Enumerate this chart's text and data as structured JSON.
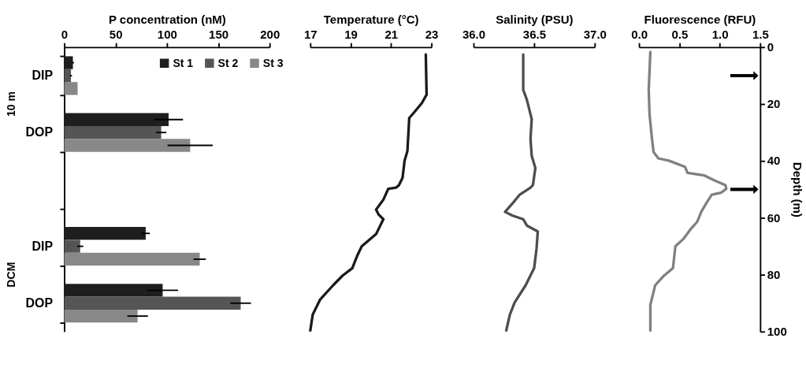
{
  "chart_data": [
    {
      "type": "bar",
      "orientation": "horizontal",
      "xlabel": "P concentration (nM)",
      "categories": [
        "DIP",
        "DOP",
        null,
        "DIP",
        "DOP"
      ],
      "xlim": [
        0,
        200
      ],
      "xticks": [
        0,
        50,
        100,
        150,
        200
      ],
      "legend": "top right",
      "annotations": [
        "10 m",
        "DCM"
      ],
      "series": [
        {
          "name": "St 1",
          "color": "#1e1e1e",
          "values": [
            8.4,
            101.6,
            null,
            79.3,
            95.8
          ],
          "errors": [
            1,
            14,
            null,
            4,
            15
          ]
        },
        {
          "name": "St 2",
          "color": "#555555",
          "values": [
            6.5,
            94.4,
            null,
            15.5,
            171.8
          ],
          "errors": [
            1,
            5,
            null,
            3,
            10
          ]
        },
        {
          "name": "St 3",
          "color": "#888888",
          "values": [
            13,
            122.6,
            null,
            131.9,
            71.4
          ],
          "errors": [
            null,
            22,
            null,
            6,
            10
          ]
        }
      ]
    },
    {
      "type": "line",
      "xlabel": "Temperature (°C)",
      "xlim": [
        17,
        23
      ],
      "xticks": [
        17,
        19,
        21,
        23
      ],
      "ylim": [
        100,
        0
      ],
      "yticks": [
        0,
        20,
        40,
        60,
        80,
        100
      ],
      "tick_labels": "x",
      "series": [
        {
          "color": "#1a1a1a",
          "x": [
            22.72,
            22.76,
            22.52,
            22.17,
            21.9,
            21.87,
            21.81,
            21.67,
            21.57,
            21.39,
            21.24,
            20.86,
            20.62,
            20.26,
            20.38,
            20.62,
            20.44,
            20.26,
            19.55,
            19.32,
            19.08,
            18.6,
            18.13,
            17.48,
            17.12,
            17.0
          ],
          "values": [
            2.6,
            16.7,
            19.7,
            22.7,
            24.9,
            28.8,
            36.5,
            39.9,
            45.9,
            48.5,
            49.4,
            49.8,
            53.6,
            57.1,
            58.8,
            60.5,
            63.1,
            65.7,
            70.0,
            73.4,
            77.7,
            80.3,
            83.7,
            88.8,
            94.0,
            99.6
          ]
        }
      ]
    },
    {
      "type": "line",
      "xlabel": "Salinity (PSU)",
      "xlim": [
        36.0,
        37.0
      ],
      "xticks": [
        {
          "value": 36,
          "label": "36.0"
        },
        {
          "value": 36.5,
          "label": "36.5"
        },
        {
          "value": 37,
          "label": "37.0"
        }
      ],
      "ylim": [
        100,
        0
      ],
      "yticks": [
        0,
        20,
        40,
        60,
        80,
        100
      ],
      "tick_labels": "x",
      "series": [
        {
          "color": "#4d4d4d",
          "x": [
            36.41,
            36.41,
            36.44,
            36.48,
            36.47,
            36.48,
            36.51,
            36.49,
            36.47,
            36.38,
            36.33,
            36.26,
            36.32,
            36.41,
            36.44,
            36.53,
            36.52,
            36.5,
            36.43,
            36.34,
            36.3,
            36.27
          ],
          "values": [
            2.6,
            15.0,
            18.5,
            25.3,
            32.2,
            38.2,
            42.5,
            48.5,
            49.4,
            51.9,
            54.5,
            57.9,
            59.2,
            60.5,
            62.7,
            64.8,
            70.8,
            77.7,
            83.7,
            89.7,
            94.0,
            99.6
          ]
        }
      ]
    },
    {
      "type": "line",
      "xlabel": "Fluorescence (RFU)",
      "ylabel": "Depth (m)",
      "xlim": [
        0.0,
        1.5
      ],
      "xticks": [
        {
          "value": 0,
          "label": "0.0"
        },
        {
          "value": 0.5,
          "label": "0.5"
        },
        {
          "value": 1,
          "label": "1.0"
        },
        {
          "value": 1.5,
          "label": "1.5"
        }
      ],
      "ylim": [
        100,
        0
      ],
      "yticks": [
        0,
        20,
        40,
        60,
        80,
        100
      ],
      "ref_lines": [
        {
          "axis": "y",
          "value": 10,
          "color": "#000000"
        },
        {
          "axis": "y",
          "value": 50,
          "color": "#000000"
        }
      ],
      "series": [
        {
          "color": "#808080",
          "x": [
            0.14,
            0.12,
            0.13,
            0.16,
            0.18,
            0.24,
            0.37,
            0.57,
            0.6,
            0.81,
            0.93,
            1.07,
            1.08,
            1.02,
            0.9,
            0.84,
            0.77,
            0.72,
            0.64,
            0.55,
            0.45,
            0.42,
            0.31,
            0.2,
            0.14,
            0.14
          ],
          "values": [
            1.7,
            15.0,
            23.6,
            32.2,
            36.9,
            39.1,
            39.9,
            42.1,
            44.2,
            45.1,
            46.8,
            48.5,
            49.8,
            51.1,
            51.9,
            54.5,
            57.9,
            61.4,
            63.9,
            67.4,
            70.0,
            77.7,
            80.3,
            83.7,
            90.6,
            99.6
          ]
        }
      ]
    }
  ]
}
